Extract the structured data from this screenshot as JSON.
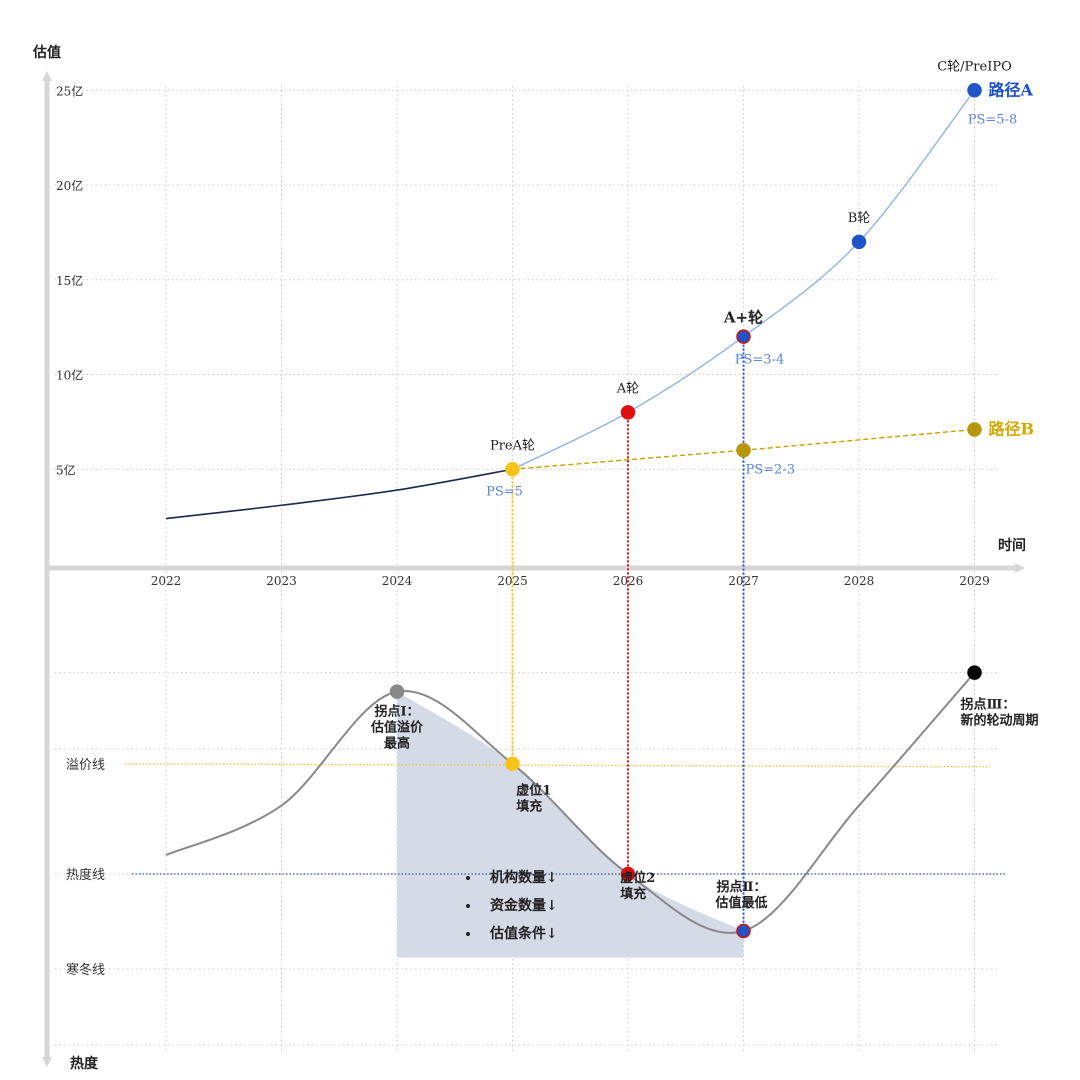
{
  "chart_data": {
    "type": "line",
    "top": {
      "y_title": "估值",
      "x_title": "时间",
      "y_ticks": [
        {
          "value": 5,
          "label": "5亿"
        },
        {
          "value": 10,
          "label": "10亿"
        },
        {
          "value": 15,
          "label": "15亿"
        },
        {
          "value": 20,
          "label": "20亿"
        },
        {
          "value": 25,
          "label": "25亿"
        }
      ],
      "x_ticks": [
        "2022",
        "2023",
        "2024",
        "2025",
        "2026",
        "2027",
        "2028",
        "2029"
      ],
      "ylim": [
        0,
        25
      ],
      "xlim": [
        2022,
        2029
      ],
      "grid": true,
      "series": [
        {
          "key": "history",
          "color": "#1a2a4a",
          "dashed": false,
          "x": [
            2022,
            2023,
            2024,
            2025
          ],
          "y": [
            2.4,
            3.1,
            3.9,
            5.0
          ]
        },
        {
          "key": "pathA",
          "name": "路径A",
          "color": "#8fb4e8",
          "label_color": "#1a4fc8",
          "dashed": false,
          "x": [
            2025,
            2026,
            2027,
            2028,
            2029
          ],
          "y": [
            5.0,
            8.0,
            12.0,
            17.0,
            25.0
          ]
        },
        {
          "key": "pathB",
          "name": "路径B",
          "color": "#c8a000",
          "label_color": "#d4a800",
          "dashed": true,
          "x": [
            2025,
            2027,
            2029
          ],
          "y": [
            5.0,
            6.0,
            7.1
          ]
        }
      ],
      "points": [
        {
          "label": "PreA轮",
          "note": "PS=5",
          "x": 2025,
          "y": 5.0,
          "fill": "#f7c318",
          "stroke": "#f7c318"
        },
        {
          "label": "A轮",
          "note": "",
          "x": 2026,
          "y": 8.0,
          "fill": "#e01010",
          "stroke": "#e01010"
        },
        {
          "label": "A+轮",
          "note": "PS=3-4",
          "x": 2027,
          "y": 12.0,
          "fill": "#1f55c8",
          "stroke": "#d01010"
        },
        {
          "label": "B轮",
          "note": "",
          "x": 2028,
          "y": 17.0,
          "fill": "#1f55c8",
          "stroke": "#1f55c8"
        },
        {
          "label": "C轮/PreIPO",
          "note": "PS=5-8",
          "x": 2029,
          "y": 25.0,
          "fill": "#1f55c8",
          "stroke": "#1f55c8"
        },
        {
          "label": "",
          "note": "PS=2-3",
          "x": 2027,
          "y": 6.0,
          "fill": "#b8960c",
          "stroke": "#b8960c"
        },
        {
          "label": "",
          "note": "",
          "x": 2029,
          "y": 7.1,
          "fill": "#b8960c",
          "stroke": "#b8960c"
        }
      ]
    },
    "bottom": {
      "y_title": "热度",
      "levels": [
        {
          "label": "溢价线",
          "value": 0.74,
          "color": "#f2c230"
        },
        {
          "label": "热度线",
          "value": 0.45,
          "color": "#2a5aa8"
        },
        {
          "label": "寒冬线",
          "value": 0.2
        }
      ],
      "curve": {
        "x": [
          2022,
          2023,
          2024,
          2025,
          2026,
          2027,
          2028,
          2029
        ],
        "y": [
          0.5,
          0.63,
          0.93,
          0.74,
          0.45,
          0.3,
          0.63,
          0.98
        ]
      },
      "shaded_region": {
        "x_from": 2024,
        "x_to": 2027,
        "bullets": [
          "机构数量↓",
          "资金数量↓",
          "估值条件↓"
        ]
      },
      "points": [
        {
          "label": "拐点Ⅰ：\n估值溢价\n最高",
          "x": 2024,
          "y": 0.93,
          "fill": "#888888",
          "stroke": "#888888"
        },
        {
          "label": "",
          "x": 2025,
          "y": 0.74,
          "fill": "#f7c318",
          "stroke": "#f7c318"
        },
        {
          "label": "",
          "x": 2026,
          "y": 0.45,
          "fill": "#e01010",
          "stroke": "#e01010"
        },
        {
          "label": "拐点Ⅱ：\n估值最低",
          "x": 2027,
          "y": 0.3,
          "fill": "#1f55c8",
          "stroke": "#d01010"
        },
        {
          "label": "拐点Ⅲ：\n新的轮动周期",
          "x": 2029,
          "y": 0.98,
          "fill": "#000000",
          "stroke": "#000000"
        }
      ],
      "annotations": [
        {
          "text": "虚位1\n填充",
          "x": 2025.5,
          "y": 0.62
        },
        {
          "text": "虚位2\n填充",
          "x": 2026.4,
          "y": 0.39
        }
      ]
    },
    "connectors": [
      {
        "x": 2025,
        "color": "#f7c318"
      },
      {
        "x": 2026,
        "color": "#e01010"
      },
      {
        "x": 2027,
        "color": "#1f55c8"
      }
    ]
  }
}
